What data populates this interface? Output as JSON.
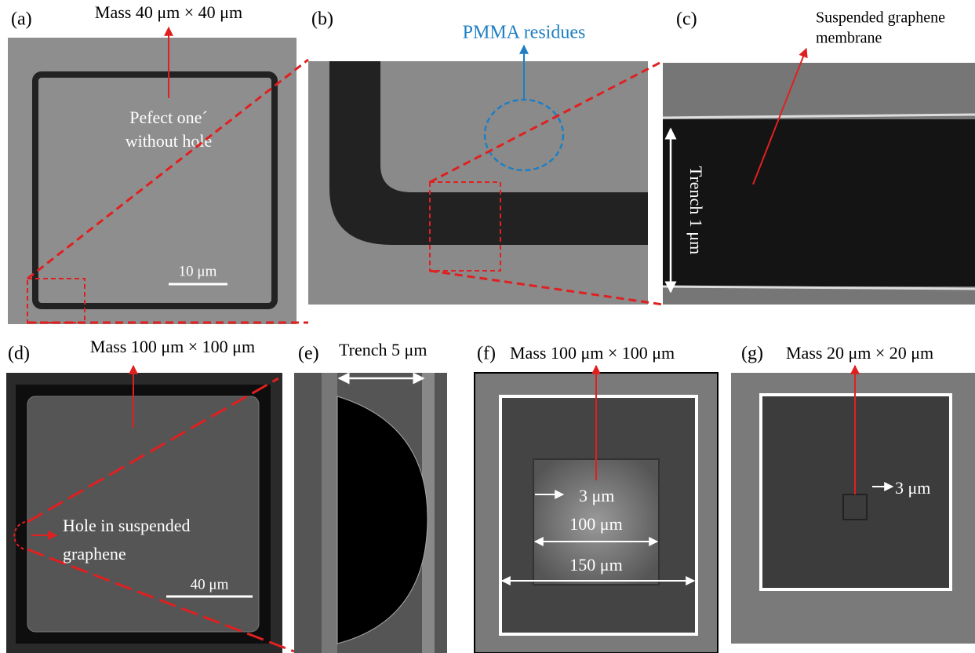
{
  "panels": {
    "a": {
      "label": "(a)",
      "title": "Mass 40 μm × 40 μm",
      "annotation": [
        "Pefect one´",
        "without hole"
      ],
      "scale_bar": "10 μm"
    },
    "b": {
      "label": "(b)",
      "annotation": "PMMA residues"
    },
    "c": {
      "label": "(c)",
      "annotation": [
        "Suspended graphene",
        "membrane"
      ],
      "trench": "Trench 1 μm"
    },
    "d": {
      "label": "(d)",
      "title": "Mass 100 μm × 100 μm",
      "annotation": [
        "Hole in suspended",
        "graphene"
      ],
      "scale_bar": "40 μm"
    },
    "e": {
      "label": "(e)",
      "title": "Trench 5 μm"
    },
    "f": {
      "label": "(f)",
      "title": "Mass 100 μm × 100 μm",
      "annotations": [
        "3 μm",
        "100 μm",
        "150 μm"
      ]
    },
    "g": {
      "label": "(g)",
      "title": "Mass 20 μm × 20 μm",
      "annotation": "3 μm"
    }
  }
}
